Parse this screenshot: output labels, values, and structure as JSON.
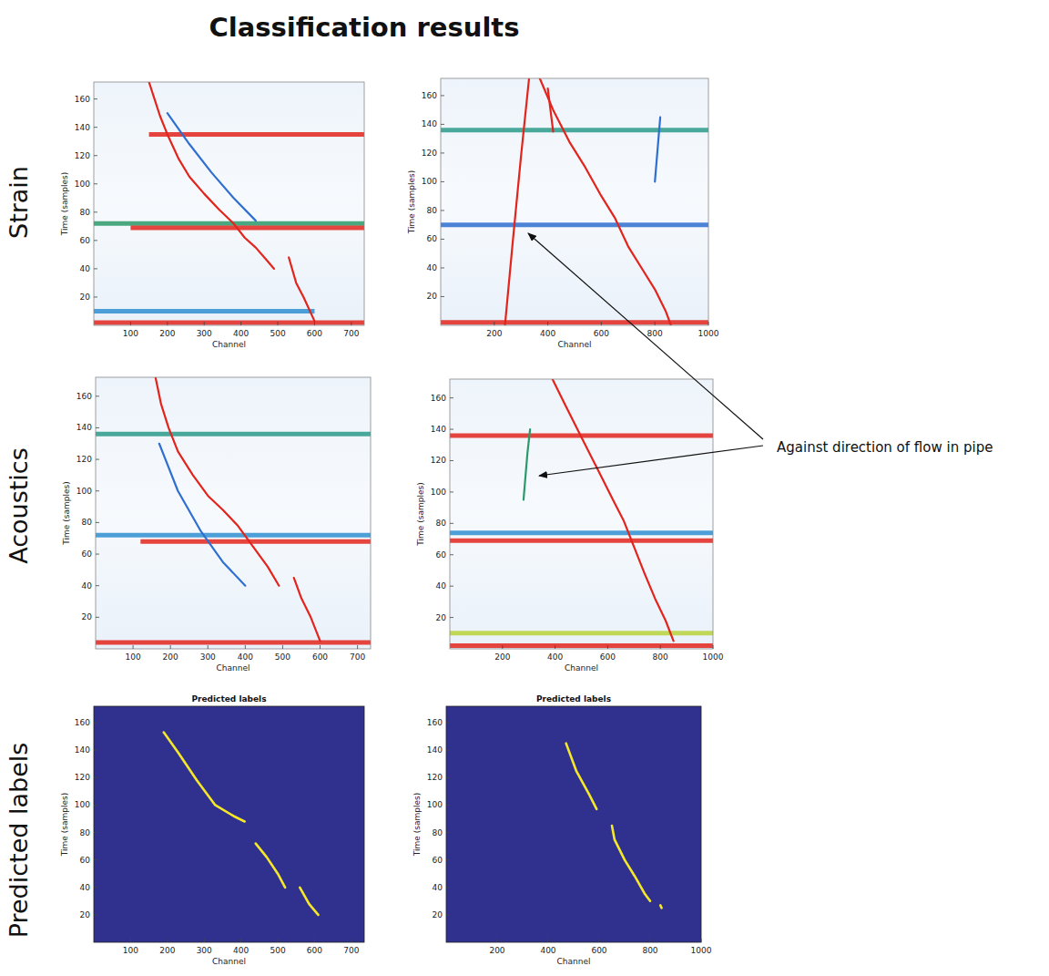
{
  "title": "Classification results",
  "row_labels": [
    "Strain",
    "Acoustics",
    "Predicted labels"
  ],
  "annotation": "Against direction of flow in pipe",
  "chart_data": [
    {
      "type": "waterfall",
      "x_label": "Channel",
      "y_label": "Time (samples)",
      "xlim": [
        0,
        735
      ],
      "ylim": [
        0,
        172
      ],
      "xticks": [
        100,
        200,
        300,
        400,
        500,
        600,
        700
      ],
      "yticks": [
        20,
        40,
        60,
        80,
        100,
        120,
        140,
        160
      ],
      "series": [
        {
          "type": "band",
          "color": "#2f8fd0",
          "x": [
            0,
            600
          ],
          "values": [
            10,
            10
          ]
        },
        {
          "type": "band",
          "color": "#e3241c",
          "x": [
            0,
            735
          ],
          "values": [
            2,
            2
          ]
        },
        {
          "type": "band",
          "color": "#2a9a6a",
          "x": [
            0,
            735
          ],
          "values": [
            72,
            72
          ]
        },
        {
          "type": "band",
          "color": "#e3241c",
          "x": [
            100,
            735
          ],
          "values": [
            69,
            69
          ]
        },
        {
          "type": "band",
          "color": "#e3241c",
          "x": [
            150,
            735
          ],
          "values": [
            135,
            135
          ]
        },
        {
          "type": "line",
          "color": "#e3241c",
          "x": [
            150,
            165,
            180,
            200,
            230,
            260,
            300,
            340,
            380,
            410,
            440,
            470,
            490,
            510,
            530,
            550,
            570,
            600
          ],
          "values": [
            172,
            160,
            148,
            135,
            118,
            105,
            93,
            82,
            72,
            62,
            55,
            46,
            40,
            null,
            48,
            30,
            20,
            3
          ]
        },
        {
          "type": "line",
          "color": "#2f6fd0",
          "x": [
            200,
            260,
            320,
            380,
            440
          ],
          "values": [
            150,
            128,
            108,
            90,
            74
          ]
        }
      ]
    },
    {
      "type": "waterfall",
      "x_label": "Channel",
      "y_label": "Time (samples)",
      "xlim": [
        0,
        1000
      ],
      "ylim": [
        0,
        172
      ],
      "xticks": [
        200,
        400,
        600,
        800,
        1000
      ],
      "yticks": [
        20,
        40,
        60,
        80,
        100,
        120,
        140,
        160
      ],
      "series": [
        {
          "type": "band",
          "color": "#2f6fd0",
          "x": [
            0,
            1000
          ],
          "values": [
            70,
            70
          ]
        },
        {
          "type": "band",
          "color": "#e3241c",
          "x": [
            0,
            1000
          ],
          "values": [
            2,
            2
          ]
        },
        {
          "type": "band",
          "color": "#2a9a8a",
          "x": [
            0,
            1000
          ],
          "values": [
            136,
            136
          ]
        },
        {
          "type": "line",
          "color": "#e3241c",
          "x": [
            240,
            270,
            300,
            330
          ],
          "values": [
            0,
            60,
            118,
            172
          ]
        },
        {
          "type": "line",
          "color": "#e3241c",
          "x": [
            370,
            420,
            480,
            540,
            600,
            650,
            700,
            750,
            800,
            840,
            860
          ],
          "values": [
            172,
            150,
            128,
            110,
            90,
            75,
            55,
            40,
            25,
            10,
            0
          ]
        },
        {
          "type": "line",
          "color": "#e3241c",
          "x": [
            400,
            420
          ],
          "values": [
            165,
            135
          ]
        },
        {
          "type": "line",
          "color": "#2f6fd0",
          "x": [
            800,
            820
          ],
          "values": [
            100,
            145
          ]
        }
      ]
    },
    {
      "type": "waterfall",
      "x_label": "Channel",
      "y_label": "Time (samples)",
      "xlim": [
        0,
        735
      ],
      "ylim": [
        0,
        172
      ],
      "xticks": [
        100,
        200,
        300,
        400,
        500,
        600,
        700
      ],
      "yticks": [
        20,
        40,
        60,
        80,
        100,
        120,
        140,
        160
      ],
      "series": [
        {
          "type": "band",
          "color": "#e3241c",
          "x": [
            0,
            735
          ],
          "values": [
            4,
            4
          ]
        },
        {
          "type": "band",
          "color": "#2f8fd0",
          "x": [
            0,
            735
          ],
          "values": [
            72,
            72
          ]
        },
        {
          "type": "band",
          "color": "#e3241c",
          "x": [
            120,
            735
          ],
          "values": [
            68,
            68
          ]
        },
        {
          "type": "band",
          "color": "#2a9a8a",
          "x": [
            0,
            735
          ],
          "values": [
            136,
            136
          ]
        },
        {
          "type": "line",
          "color": "#e3241c",
          "x": [
            160,
            175,
            195,
            220,
            260,
            300,
            340,
            380,
            420,
            460,
            490,
            510,
            530,
            550,
            575,
            600
          ],
          "values": [
            172,
            155,
            140,
            125,
            110,
            97,
            88,
            78,
            65,
            52,
            40,
            null,
            45,
            32,
            20,
            5
          ]
        },
        {
          "type": "line",
          "color": "#2f6fd0",
          "x": [
            170,
            220,
            280,
            340,
            400
          ],
          "values": [
            130,
            100,
            75,
            55,
            40
          ]
        }
      ]
    },
    {
      "type": "waterfall",
      "x_label": "Channel",
      "y_label": "Time (samples)",
      "xlim": [
        0,
        1000
      ],
      "ylim": [
        0,
        172
      ],
      "xticks": [
        200,
        400,
        600,
        800,
        1000
      ],
      "yticks": [
        20,
        40,
        60,
        80,
        100,
        120,
        140,
        160
      ],
      "series": [
        {
          "type": "band",
          "color": "#b8d23a",
          "x": [
            0,
            1000
          ],
          "values": [
            10,
            10
          ]
        },
        {
          "type": "band",
          "color": "#e3241c",
          "x": [
            0,
            1000
          ],
          "values": [
            2,
            2
          ]
        },
        {
          "type": "band",
          "color": "#2f8fd0",
          "x": [
            0,
            1000
          ],
          "values": [
            74,
            74
          ]
        },
        {
          "type": "band",
          "color": "#e3241c",
          "x": [
            0,
            1000
          ],
          "values": [
            69,
            69
          ]
        },
        {
          "type": "band",
          "color": "#e3241c",
          "x": [
            0,
            1000
          ],
          "values": [
            136,
            136
          ]
        },
        {
          "type": "line",
          "color": "#2a9a6a",
          "x": [
            280,
            295,
            305
          ],
          "values": [
            95,
            125,
            140
          ]
        },
        {
          "type": "line",
          "color": "#e3241c",
          "x": [
            390,
            440,
            500,
            560,
            620,
            660,
            700,
            740,
            780,
            820,
            850
          ],
          "values": [
            172,
            155,
            135,
            115,
            95,
            82,
            65,
            48,
            32,
            18,
            5
          ]
        }
      ]
    },
    {
      "type": "mask",
      "title": "Predicted labels",
      "x_label": "Channel",
      "y_label": "Time (samples)",
      "xlim": [
        0,
        735
      ],
      "ylim": [
        0,
        172
      ],
      "xticks": [
        100,
        200,
        300,
        400,
        500,
        600,
        700
      ],
      "yticks": [
        20,
        40,
        60,
        80,
        100,
        120,
        140,
        160
      ],
      "series": [
        {
          "type": "line",
          "color": "#f5e829",
          "x": [
            190,
            230,
            280,
            330,
            380,
            410,
            425,
            440,
            470,
            500,
            520,
            540,
            560,
            585,
            610
          ],
          "values": [
            153,
            138,
            118,
            100,
            92,
            88,
            null,
            72,
            62,
            50,
            40,
            null,
            40,
            28,
            20
          ]
        }
      ]
    },
    {
      "type": "mask",
      "title": "Predicted labels",
      "x_label": "Channel",
      "y_label": "Time (samples)",
      "xlim": [
        0,
        1000
      ],
      "ylim": [
        0,
        172
      ],
      "xticks": [
        200,
        400,
        600,
        800,
        1000
      ],
      "yticks": [
        20,
        40,
        60,
        80,
        100,
        120,
        140,
        160
      ],
      "series": [
        {
          "type": "line",
          "color": "#f5e829",
          "x": [
            470,
            510,
            560,
            590,
            610,
            650,
            660,
            700,
            740,
            780,
            800,
            820,
            840,
            845
          ],
          "values": [
            145,
            125,
            108,
            97,
            null,
            85,
            75,
            60,
            48,
            35,
            30,
            null,
            27,
            25
          ]
        }
      ]
    }
  ]
}
